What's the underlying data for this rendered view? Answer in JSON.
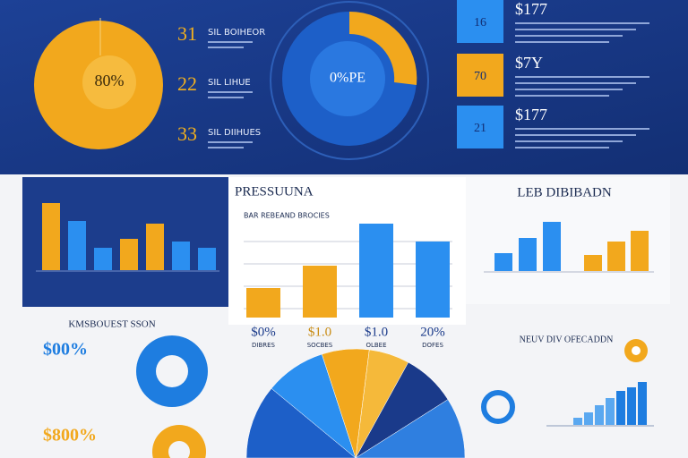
{
  "top": {
    "circle_label": "80%",
    "items": [
      {
        "number": "31",
        "text": "SIL BOIHEOR"
      },
      {
        "number": "22",
        "text": "SIL LIHUE"
      },
      {
        "number": "33",
        "text": "SIL DIIHUES"
      }
    ],
    "pie_label": "0%PE",
    "boxes": [
      {
        "number": "16",
        "value": "$177",
        "color": "#2b8ff0"
      },
      {
        "number": "70",
        "value": "$7Y",
        "color": "#f2a81d"
      },
      {
        "number": "21",
        "value": "$177",
        "color": "#2b8ff0"
      }
    ]
  },
  "left_bars": {
    "values": [
      75,
      55,
      25,
      35,
      52,
      32,
      25
    ],
    "colors": [
      "#f2a81d",
      "#2b8ff0",
      "#2b8ff0",
      "#f2a81d",
      "#f2a81d",
      "#2b8ff0",
      "#2b8ff0"
    ]
  },
  "center_chart": {
    "title": "PRESSUUNA",
    "subtitle": "BAR REBEAND BROCIES",
    "values": [
      33,
      58,
      105,
      85
    ],
    "colors": [
      "#f2a81d",
      "#f2a81d",
      "#2b8ff0",
      "#2b8ff0"
    ],
    "labels": [
      "$0%",
      "$1.0",
      "$1.0",
      "20%"
    ],
    "sublabels": [
      "DIBRES",
      "SOCBES",
      "OLBEE",
      "DOFES"
    ]
  },
  "right_chart": {
    "title": "LEB DIBIBADN",
    "values": [
      20,
      37,
      55,
      18,
      33,
      45
    ],
    "colors": [
      "#2b8ff0",
      "#2b8ff0",
      "#2b8ff0",
      "#f2a81d",
      "#f2a81d",
      "#f2a81d"
    ]
  },
  "bottom_left": {
    "title": "KMSBOUEST SSON",
    "items": [
      "$00%",
      "$800%"
    ]
  },
  "bottom_pie": {
    "values": [
      22,
      18,
      14,
      12,
      16,
      18
    ],
    "colors": [
      "#1d5fc8",
      "#2b8ff0",
      "#f2a81d",
      "#f5b93a",
      "#1a3a8a",
      "#2f7fe0"
    ]
  },
  "bottom_right": {
    "title": "NEUV DIV OFECADDN",
    "values": [
      8,
      14,
      22,
      30,
      38,
      42,
      48
    ]
  }
}
